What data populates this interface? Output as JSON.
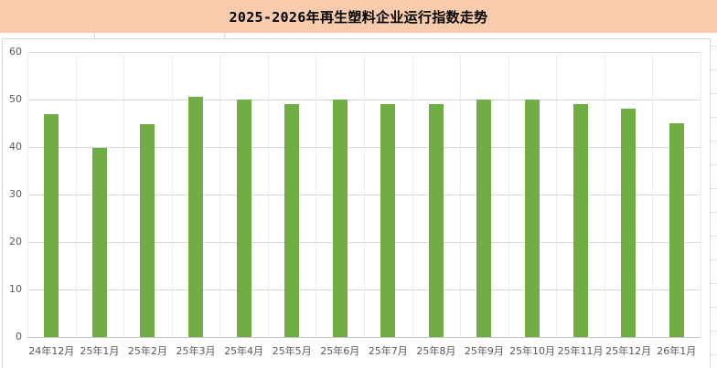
{
  "header": {
    "title": "2025-2026年再生塑料企业运行指数走势",
    "background_color": "#F8CBAD"
  },
  "chart_data": {
    "type": "bar",
    "title": "2025-2026年再生塑料企业运行指数走势",
    "xlabel": "",
    "ylabel": "",
    "ylim": [
      0,
      60
    ],
    "yticks": [
      0,
      10,
      20,
      30,
      40,
      50,
      60
    ],
    "grid": true,
    "legend": null,
    "bar_color": "#70AD47",
    "categories": [
      "24年12月",
      "25年1月",
      "25年2月",
      "25年3月",
      "25年4月",
      "25年5月",
      "25年6月",
      "25年7月",
      "25年8月",
      "25年9月",
      "25年10月",
      "25年11月",
      "25年12月",
      "26年1月"
    ],
    "values": [
      47.0,
      39.9,
      44.9,
      50.5,
      50.0,
      49.0,
      50.0,
      49.0,
      49.0,
      50.0,
      50.0,
      49.0,
      48.0,
      45.0
    ]
  }
}
